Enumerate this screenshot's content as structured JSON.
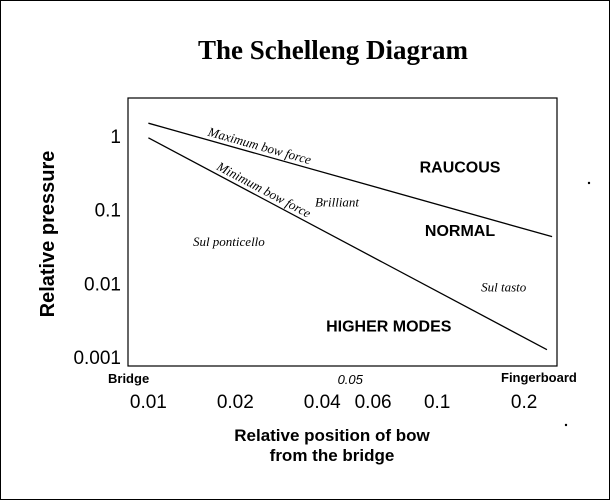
{
  "chart_data": {
    "type": "line",
    "title": "The Schelleng Diagram",
    "xlabel_line1": "Relative position of bow",
    "xlabel_line2": "from the bridge",
    "ylabel": "Relative pressure",
    "x_scale": "log",
    "y_scale": "log",
    "xlim": [
      0.0085,
      0.26
    ],
    "ylim": [
      0.00075,
      3.3
    ],
    "x_end_labels": {
      "left": "Bridge",
      "right": "Fingerboard"
    },
    "x_ticks": [
      {
        "value": 0.01,
        "label": "0.01"
      },
      {
        "value": 0.02,
        "label": "0.02"
      },
      {
        "value": 0.04,
        "label": "0.04"
      },
      {
        "value": 0.06,
        "label": "0.06"
      },
      {
        "value": 0.1,
        "label": "0.1"
      },
      {
        "value": 0.2,
        "label": "0.2"
      }
    ],
    "x_minor_ticks": [
      {
        "value": 0.05,
        "label": "0.05"
      }
    ],
    "y_ticks": [
      {
        "value": 1,
        "label": "1"
      },
      {
        "value": 0.1,
        "label": "0.1"
      },
      {
        "value": 0.01,
        "label": "0.01"
      },
      {
        "value": 0.001,
        "label": "0.001"
      }
    ],
    "grid": false,
    "legend": "none",
    "series": [
      {
        "name": "Maximum bow force",
        "x": [
          0.01,
          0.25
        ],
        "y": [
          1.5,
          0.043
        ]
      },
      {
        "name": "Minimum bow force",
        "x": [
          0.01,
          0.24
        ],
        "y": [
          0.95,
          0.00125
        ]
      }
    ],
    "regions": [
      {
        "text": "RAUCOUS",
        "x": 0.12,
        "y": 0.32
      },
      {
        "text": "NORMAL",
        "x": 0.12,
        "y": 0.044
      },
      {
        "text": "HIGHER MODES",
        "x": 0.068,
        "y": 0.0022
      }
    ],
    "annotations": [
      {
        "text": "Brilliant",
        "x": 0.045,
        "y": 0.11
      },
      {
        "text": "Sul ponticello",
        "x": 0.019,
        "y": 0.032
      },
      {
        "text": "Sul tasto",
        "x": 0.17,
        "y": 0.0077
      }
    ]
  }
}
